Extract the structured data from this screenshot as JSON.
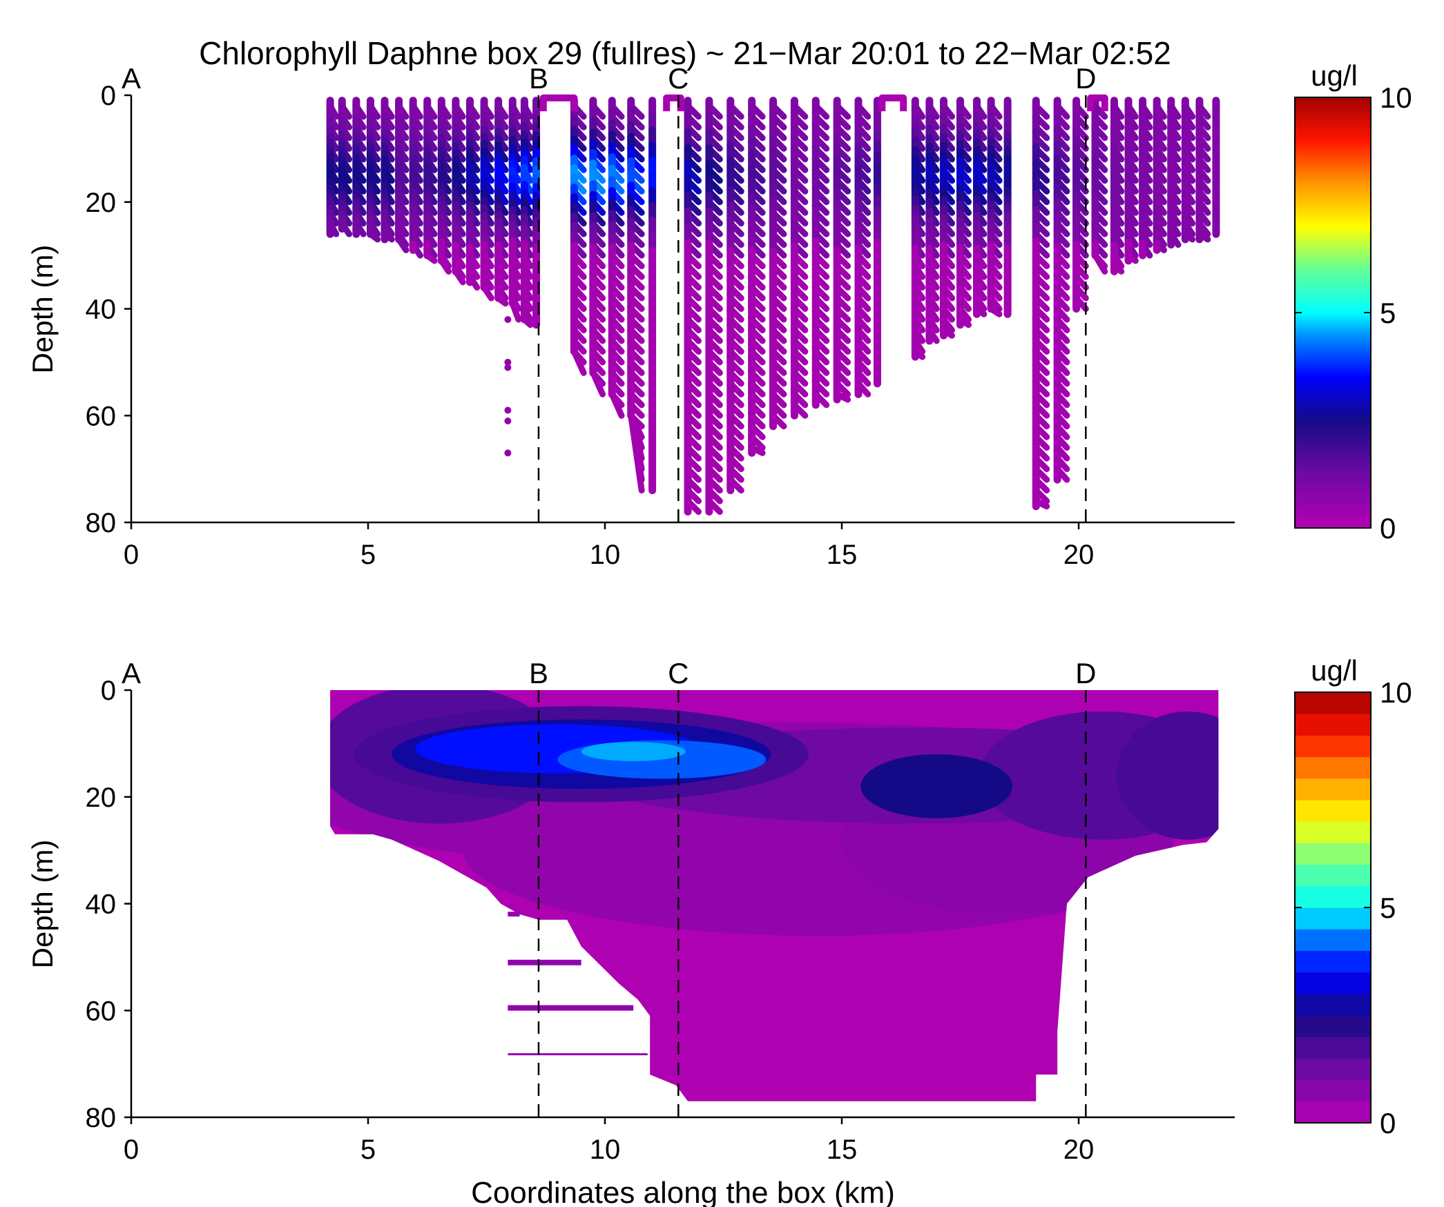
{
  "figure": {
    "title": "Chlorophyll Daphne box 29 (fullres) ~ 21−Mar 20:01 to 22−Mar 02:52",
    "xlabel": "Coordinates along the box (km)"
  },
  "chart_data": [
    {
      "type": "scatter",
      "title": "Chlorophyll Daphne box 29 (fullres) ~ 21−Mar 20:01 to 22−Mar 02:52",
      "xlabel": "",
      "ylabel": "Depth (m)",
      "xlim": [
        0,
        23.3
      ],
      "ylim": [
        80,
        0
      ],
      "y_reversed": true,
      "xticks": [
        "0",
        "5",
        "10",
        "15",
        "20"
      ],
      "yticks": [
        "0",
        "20",
        "40",
        "60",
        "80"
      ],
      "grid": false,
      "section_markers": [
        {
          "label": "A",
          "x": 0
        },
        {
          "label": "B",
          "x": 8.6
        },
        {
          "label": "C",
          "x": 11.55
        },
        {
          "label": "D",
          "x": 20.15
        }
      ],
      "colorbar": {
        "label": "ug/l",
        "min": 0,
        "max": 10,
        "ticks": [
          "0",
          "5",
          "10"
        ],
        "style": "continuous"
      },
      "casts": [
        {
          "x": 4.2,
          "max_depth": 26
        },
        {
          "x": 4.45,
          "max_depth": 25
        },
        {
          "x": 4.75,
          "max_depth": 26
        },
        {
          "x": 5.05,
          "max_depth": 26
        },
        {
          "x": 5.35,
          "max_depth": 27
        },
        {
          "x": 5.65,
          "max_depth": 27
        },
        {
          "x": 5.95,
          "max_depth": 29
        },
        {
          "x": 6.25,
          "max_depth": 30
        },
        {
          "x": 6.55,
          "max_depth": 31
        },
        {
          "x": 6.85,
          "max_depth": 33
        },
        {
          "x": 7.15,
          "max_depth": 35
        },
        {
          "x": 7.45,
          "max_depth": 36
        },
        {
          "x": 7.75,
          "max_depth": 38
        },
        {
          "x": 8.05,
          "max_depth": 39
        },
        {
          "x": 8.3,
          "max_depth": 42
        },
        {
          "x": 8.55,
          "max_depth": 43
        },
        {
          "x": 9.35,
          "max_depth": 48
        },
        {
          "x": 9.75,
          "max_depth": 52
        },
        {
          "x": 10.15,
          "max_depth": 56
        },
        {
          "x": 10.55,
          "max_depth": 60
        },
        {
          "x": 11.0,
          "max_depth": 74
        },
        {
          "x": 11.75,
          "max_depth": 78
        },
        {
          "x": 12.2,
          "max_depth": 78
        },
        {
          "x": 12.65,
          "max_depth": 74
        },
        {
          "x": 13.1,
          "max_depth": 67
        },
        {
          "x": 13.55,
          "max_depth": 62
        },
        {
          "x": 14.0,
          "max_depth": 60
        },
        {
          "x": 14.45,
          "max_depth": 58
        },
        {
          "x": 14.9,
          "max_depth": 57
        },
        {
          "x": 15.35,
          "max_depth": 56
        },
        {
          "x": 15.75,
          "max_depth": 54
        },
        {
          "x": 16.55,
          "max_depth": 49
        },
        {
          "x": 16.85,
          "max_depth": 46
        },
        {
          "x": 17.15,
          "max_depth": 45
        },
        {
          "x": 17.5,
          "max_depth": 43
        },
        {
          "x": 17.85,
          "max_depth": 41
        },
        {
          "x": 18.15,
          "max_depth": 40
        },
        {
          "x": 18.5,
          "max_depth": 41
        },
        {
          "x": 19.1,
          "max_depth": 77
        },
        {
          "x": 19.55,
          "max_depth": 72
        },
        {
          "x": 19.95,
          "max_depth": 40
        },
        {
          "x": 20.35,
          "max_depth": 30
        },
        {
          "x": 20.75,
          "max_depth": 33
        },
        {
          "x": 21.05,
          "max_depth": 31
        },
        {
          "x": 21.35,
          "max_depth": 30
        },
        {
          "x": 21.65,
          "max_depth": 29
        },
        {
          "x": 21.95,
          "max_depth": 28
        },
        {
          "x": 22.25,
          "max_depth": 27
        },
        {
          "x": 22.55,
          "max_depth": 27
        },
        {
          "x": 22.9,
          "max_depth": 26
        }
      ],
      "isolated_points": [
        {
          "x": 7.95,
          "depth": 42
        },
        {
          "x": 7.95,
          "depth": 50
        },
        {
          "x": 7.95,
          "depth": 51
        },
        {
          "x": 7.95,
          "depth": 59
        },
        {
          "x": 7.95,
          "depth": 61
        },
        {
          "x": 7.95,
          "depth": 67
        }
      ]
    },
    {
      "type": "heatmap",
      "subtype": "filled contour",
      "title": "",
      "xlabel": "Coordinates along the box (km)",
      "ylabel": "Depth (m)",
      "xlim": [
        0,
        23.3
      ],
      "ylim": [
        80,
        0
      ],
      "y_reversed": true,
      "xticks": [
        "0",
        "5",
        "10",
        "15",
        "20"
      ],
      "yticks": [
        "0",
        "20",
        "40",
        "60",
        "80"
      ],
      "grid": false,
      "section_markers": [
        {
          "label": "A",
          "x": 0
        },
        {
          "label": "B",
          "x": 8.6
        },
        {
          "label": "C",
          "x": 11.55
        },
        {
          "label": "D",
          "x": 20.15
        }
      ],
      "colorbar": {
        "label": "ug/l",
        "min": 0,
        "max": 10,
        "ticks": [
          "0",
          "5",
          "10"
        ],
        "style": "discrete",
        "levels": 20
      },
      "bottom_outline": [
        [
          4.2,
          25.5
        ],
        [
          4.3,
          27
        ],
        [
          5.1,
          27
        ],
        [
          5.5,
          28
        ],
        [
          6.0,
          30
        ],
        [
          6.5,
          32
        ],
        [
          7.0,
          34.5
        ],
        [
          7.5,
          37
        ],
        [
          7.8,
          40
        ],
        [
          8.2,
          42
        ],
        [
          8.6,
          43
        ],
        [
          9.2,
          43
        ],
        [
          9.5,
          48
        ],
        [
          9.9,
          51.5
        ],
        [
          10.3,
          55
        ],
        [
          10.7,
          58
        ],
        [
          10.95,
          61
        ],
        [
          10.95,
          72
        ],
        [
          11.5,
          74
        ],
        [
          11.75,
          77
        ],
        [
          12.3,
          77
        ],
        [
          12.5,
          77
        ],
        [
          19.1,
          77
        ],
        [
          19.1,
          72
        ],
        [
          19.55,
          72
        ],
        [
          19.55,
          64
        ],
        [
          19.75,
          40
        ],
        [
          20.2,
          35
        ],
        [
          20.7,
          33
        ],
        [
          21.2,
          31
        ],
        [
          21.7,
          30
        ],
        [
          22.2,
          29
        ],
        [
          22.7,
          28.5
        ],
        [
          22.95,
          26
        ]
      ],
      "contour_features": [
        {
          "label": "chlorophyll maximum",
          "x_range": [
            6.0,
            13.5
          ],
          "depth_range": [
            5,
            20
          ],
          "peak_value": 4.5
        },
        {
          "label": "secondary maximum",
          "x_range": [
            16.5,
            18.0
          ],
          "depth_range": [
            13,
            23
          ],
          "peak_value": 2.5
        }
      ]
    }
  ]
}
